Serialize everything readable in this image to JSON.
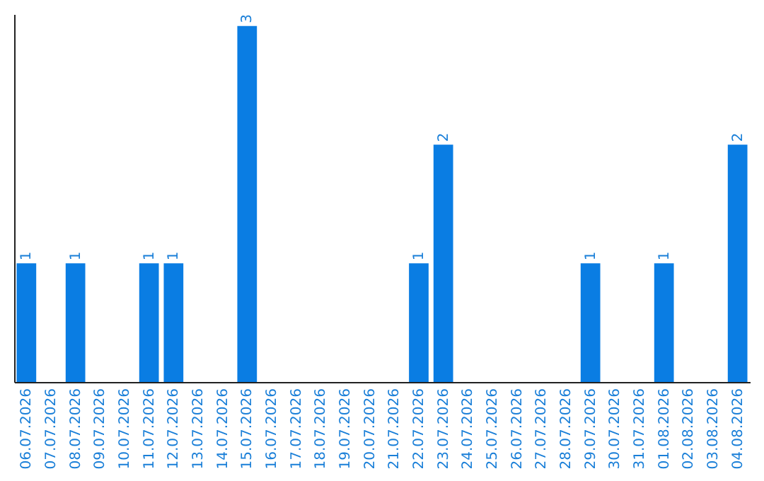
{
  "chart_data": {
    "type": "bar",
    "categories": [
      "06.07.2026",
      "07.07.2026",
      "08.07.2026",
      "09.07.2026",
      "10.07.2026",
      "11.07.2026",
      "12.07.2026",
      "13.07.2026",
      "14.07.2026",
      "15.07.2026",
      "16.07.2026",
      "17.07.2026",
      "18.07.2026",
      "19.07.2026",
      "20.07.2026",
      "21.07.2026",
      "22.07.2026",
      "23.07.2026",
      "24.07.2026",
      "25.07.2026",
      "26.07.2026",
      "27.07.2026",
      "28.07.2026",
      "29.07.2026",
      "30.07.2026",
      "31.07.2026",
      "01.08.2026",
      "02.08.2026",
      "03.08.2026",
      "04.08.2026"
    ],
    "values": [
      1,
      0,
      1,
      0,
      0,
      1,
      1,
      0,
      0,
      3,
      0,
      0,
      0,
      0,
      0,
      0,
      1,
      2,
      0,
      0,
      0,
      0,
      0,
      1,
      0,
      0,
      1,
      0,
      0,
      2
    ],
    "value_labels": [
      "1",
      null,
      "1",
      null,
      null,
      "1",
      "1",
      null,
      null,
      "3",
      null,
      null,
      null,
      null,
      null,
      null,
      "1",
      "2",
      null,
      null,
      null,
      null,
      null,
      "1",
      null,
      null,
      "1",
      null,
      null,
      "2"
    ],
    "color": "#0a7de3",
    "ylim": [
      0,
      3.1
    ],
    "tick_labels": "x"
  }
}
